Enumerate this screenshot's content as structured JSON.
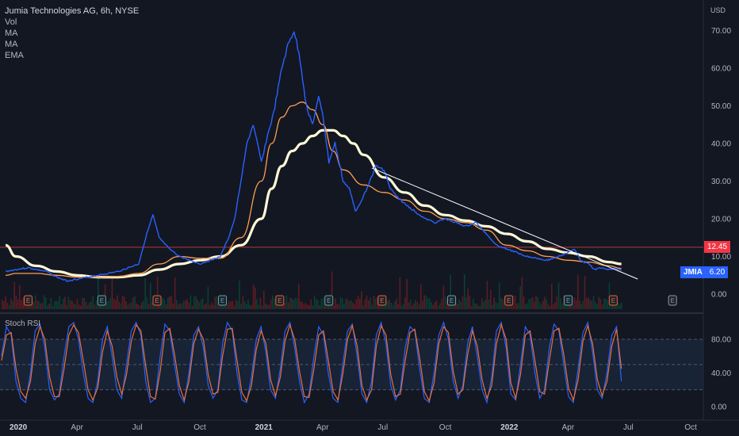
{
  "legend": {
    "title": "Jumia Technologies AG, 6h, NYSE",
    "lines": [
      "Vol",
      "MA",
      "MA",
      "EMA"
    ]
  },
  "currency": "USD",
  "rsi_label": "Stoch RSI",
  "price_tag": {
    "value": "12.45",
    "color": "#f23645"
  },
  "last_tag": {
    "symbol": "JMIA",
    "value": "6.20",
    "color": "#2962ff"
  },
  "earnings_marker": "E",
  "colors": {
    "background": "#131722",
    "price": "#2962ff",
    "ma_fast": "#ff9e50",
    "ma_slow": "#fff8d6",
    "trend": "#ffffff",
    "hline": "#b33a3a",
    "vol_up": "#0b3f33",
    "vol_down": "#5a1d22",
    "rsi_k": "#2962ff",
    "rsi_d": "#e8703a"
  },
  "chart_data": [
    {
      "type": "line",
      "title": "Jumia Technologies AG, 6h, NYSE",
      "ylim": [
        0,
        70
      ],
      "yticks": [
        "0.00",
        "10.00",
        "20.00",
        "30.00",
        "40.00",
        "50.00",
        "60.00",
        "70.00"
      ],
      "ytick_values": [
        0,
        10,
        20,
        30,
        40,
        50,
        60,
        70
      ],
      "x_labels": [
        {
          "label": "2020",
          "t": 0,
          "year": true
        },
        {
          "label": "Apr",
          "t": 3,
          "year": false
        },
        {
          "label": "Jul",
          "t": 6,
          "year": false
        },
        {
          "label": "Oct",
          "t": 9,
          "year": false
        },
        {
          "label": "2021",
          "t": 12,
          "year": true
        },
        {
          "label": "Apr",
          "t": 15,
          "year": false
        },
        {
          "label": "Jul",
          "t": 18,
          "year": false
        },
        {
          "label": "Oct",
          "t": 21,
          "year": false
        },
        {
          "label": "2022",
          "t": 24,
          "year": true
        },
        {
          "label": "Apr",
          "t": 27,
          "year": false
        },
        {
          "label": "Jul",
          "t": 30,
          "year": false
        },
        {
          "label": "Oct",
          "t": 33,
          "year": false
        }
      ],
      "series": [
        {
          "role": "price",
          "x": [
            -0.5,
            0,
            0.6,
            1,
            1.5,
            2,
            2.5,
            3,
            3.5,
            4,
            4.5,
            5,
            5.5,
            6,
            6.4,
            6.7,
            7,
            7.5,
            8,
            8.5,
            9,
            9.5,
            10,
            10.4,
            10.7,
            11,
            11.3,
            11.6,
            12,
            12.3,
            12.6,
            13,
            13.3,
            13.6,
            13.9,
            14.2,
            14.5,
            14.8,
            15,
            15.3,
            15.6,
            16,
            16.3,
            16.6,
            17,
            17.3,
            17.6,
            18,
            18.3,
            18.6,
            19,
            19.5,
            20,
            20.5,
            21,
            21.5,
            22,
            22.5,
            23,
            23.5,
            24,
            24.5,
            25,
            25.5,
            26,
            26.5,
            27,
            27.3,
            27.6,
            28,
            28.3,
            28.6,
            29,
            29.3,
            29.6
          ],
          "values": [
            6,
            6.5,
            7,
            6.5,
            6,
            4.5,
            3.5,
            4,
            4.5,
            5,
            5.5,
            6,
            7,
            8,
            16,
            21,
            15,
            12,
            10,
            9,
            8,
            9,
            10,
            15,
            20,
            30,
            40,
            45,
            35,
            42,
            48,
            60,
            66,
            70,
            62,
            50,
            45,
            52,
            48,
            35,
            40,
            30,
            28,
            22,
            26,
            30,
            34,
            33,
            28,
            26,
            24,
            22,
            20,
            19,
            20,
            19,
            18,
            19,
            16,
            13,
            12,
            11,
            10,
            9.5,
            9,
            10,
            11,
            12,
            9,
            8,
            6.5,
            7,
            6.5,
            7,
            6.2
          ]
        },
        {
          "role": "ma_fast",
          "x": [
            -0.5,
            0,
            1,
            2,
            3,
            4,
            5,
            6,
            7,
            8,
            9,
            10,
            11,
            12,
            12.5,
            13,
            13.5,
            14,
            14.5,
            15,
            15.5,
            16,
            17,
            18,
            19,
            20,
            21,
            22,
            23,
            24,
            25,
            26,
            27,
            28,
            29,
            29.6
          ],
          "values": [
            5,
            5.5,
            5.5,
            5,
            4.5,
            4.5,
            4.7,
            5.5,
            8,
            10,
            9.5,
            9.5,
            15,
            30,
            40,
            47,
            50,
            51,
            49,
            45,
            38,
            33,
            29,
            27,
            25,
            22,
            20,
            19,
            17,
            13,
            11.5,
            10,
            9,
            8.5,
            7.5,
            6.8
          ]
        },
        {
          "role": "ma_slow",
          "x": [
            -0.5,
            0,
            1,
            2,
            3,
            4,
            5,
            6,
            7,
            8,
            9,
            10,
            11,
            12,
            12.5,
            13,
            13.5,
            14,
            14.5,
            15,
            15.5,
            16,
            16.5,
            17,
            18,
            19,
            20,
            21,
            22,
            23,
            24,
            25,
            26,
            27,
            28,
            29,
            29.6
          ],
          "values": [
            13,
            10,
            7.5,
            6,
            5,
            4.5,
            4.5,
            5,
            6.5,
            8,
            9,
            10,
            13,
            20,
            28,
            34,
            38,
            40,
            42,
            43.5,
            43.5,
            42,
            40,
            37,
            31,
            27,
            23.5,
            21,
            19.5,
            18,
            16,
            14,
            12,
            11,
            10,
            8.5,
            8
          ]
        },
        {
          "role": "trendline",
          "x": [
            17.4,
            30.4
          ],
          "values": [
            33.5,
            4
          ]
        },
        {
          "role": "hline",
          "x": [
            -0.5,
            33.5
          ],
          "values": [
            12.45,
            12.45
          ]
        }
      ],
      "earnings_t": [
        0.6,
        4.2,
        6.9,
        10.1,
        12.9,
        15.3,
        17.9,
        21.3,
        24.1,
        27.0,
        29.2,
        32.1
      ],
      "earnings_future": [
        32.1
      ]
    },
    {
      "type": "line",
      "title": "Stoch RSI",
      "ylim": [
        0,
        100
      ],
      "yticks": [
        "0.00",
        "40.00",
        "80.00"
      ],
      "ytick_values": [
        0,
        40,
        80
      ],
      "bands": [
        20,
        50,
        80
      ],
      "series": [
        {
          "name": "K",
          "role": "k",
          "values": [
            60,
            95,
            85,
            30,
            10,
            5,
            40,
            90,
            98,
            70,
            20,
            8,
            15,
            60,
            95,
            100,
            80,
            40,
            10,
            5,
            30,
            80,
            95,
            60,
            20,
            10,
            50,
            90,
            100,
            85,
            30,
            5,
            10,
            60,
            98,
            90,
            50,
            15,
            5,
            40,
            85,
            95,
            70,
            25,
            10,
            20,
            75,
            100,
            90,
            40,
            8,
            5,
            35,
            80,
            95,
            65,
            20,
            10,
            45,
            90,
            100,
            70,
            30,
            5,
            15,
            60,
            95,
            85,
            40,
            10,
            5,
            50,
            90,
            98,
            60,
            15,
            5,
            30,
            85,
            100,
            75,
            25,
            8,
            20,
            70,
            95,
            90,
            45,
            10,
            5,
            40,
            85,
            100,
            80,
            30,
            10,
            25,
            75,
            95,
            60,
            20,
            5,
            35,
            90,
            100,
            70,
            15,
            8,
            50,
            95,
            85,
            40,
            10,
            20,
            70,
            98,
            90,
            50,
            12,
            5,
            45,
            88,
            100,
            65,
            20,
            10,
            40,
            85,
            95,
            30
          ]
        },
        {
          "name": "D",
          "role": "d",
          "values": [
            55,
            85,
            88,
            45,
            18,
            10,
            30,
            75,
            95,
            80,
            35,
            12,
            12,
            45,
            85,
            97,
            88,
            55,
            20,
            8,
            22,
            65,
            90,
            72,
            35,
            15,
            38,
            78,
            97,
            90,
            48,
            12,
            9,
            42,
            88,
            93,
            62,
            25,
            8,
            30,
            75,
            92,
            80,
            38,
            15,
            17,
            60,
            92,
            93,
            55,
            17,
            7,
            25,
            68,
            90,
            75,
            32,
            13,
            35,
            78,
            97,
            80,
            42,
            12,
            11,
            45,
            85,
            90,
            55,
            18,
            8,
            38,
            80,
            96,
            72,
            25,
            8,
            20,
            72,
            96,
            85,
            38,
            12,
            15,
            55,
            88,
            92,
            58,
            18,
            7,
            28,
            75,
            95,
            88,
            42,
            15,
            20,
            62,
            90,
            72,
            32,
            10,
            25,
            75,
            97,
            80,
            28,
            10,
            38,
            85,
            90,
            55,
            18,
            15,
            55,
            90,
            93,
            62,
            22,
            8,
            32,
            78,
            96,
            75,
            32,
            13,
            30,
            72,
            92,
            45
          ]
        }
      ]
    }
  ]
}
